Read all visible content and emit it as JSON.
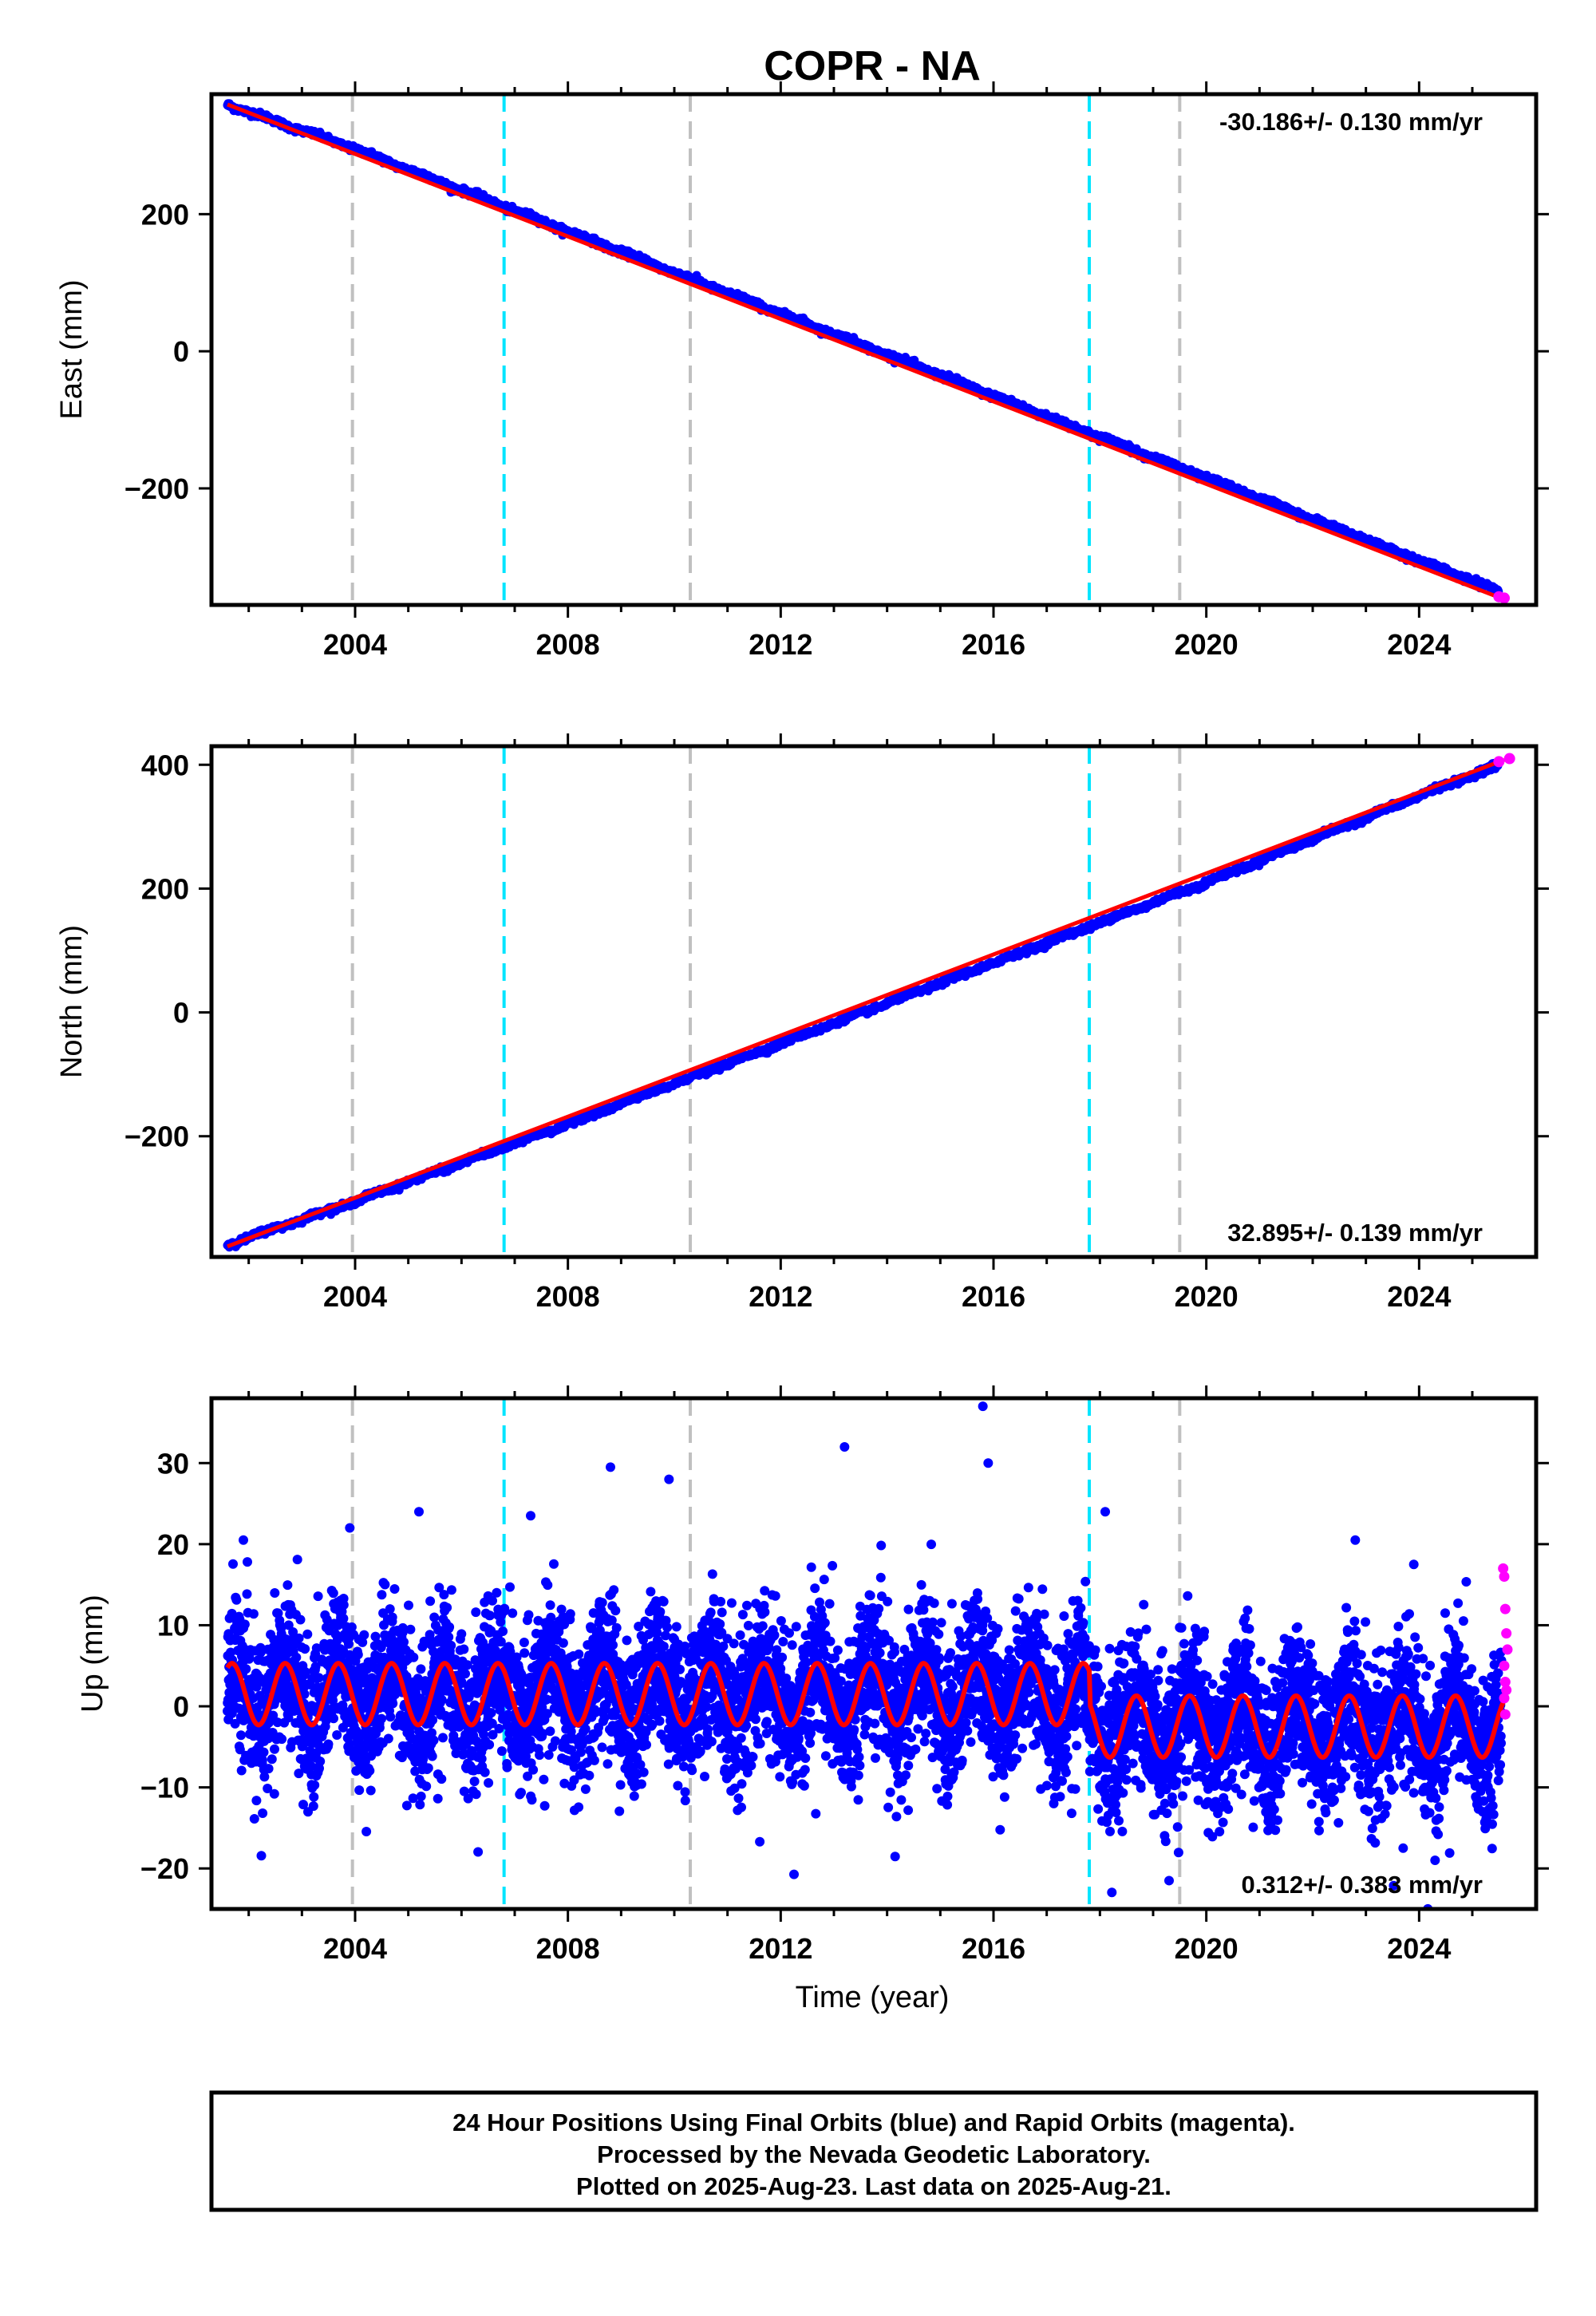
{
  "title": "COPR - NA",
  "colors": {
    "final_orbits": "#0000ff",
    "rapid_orbits": "#ff00ff",
    "model": "#ff0000",
    "equipment_change": "#c0c0c0",
    "earthquake": "#00e5ff"
  },
  "x_axis": {
    "label": "Time (year)",
    "range": [
      2001.3,
      2026.2
    ],
    "ticks": [
      2004,
      2008,
      2012,
      2016,
      2020,
      2024
    ],
    "tick_labels": [
      "2004",
      "2008",
      "2012",
      "2016",
      "2020",
      "2024"
    ]
  },
  "vertical_markers": [
    {
      "kind": "gray",
      "year": 2003.95
    },
    {
      "kind": "cyan",
      "year": 2006.8
    },
    {
      "kind": "gray",
      "year": 2010.3
    },
    {
      "kind": "cyan",
      "year": 2017.8
    },
    {
      "kind": "gray",
      "year": 2019.5
    }
  ],
  "chart_data": [
    {
      "type": "scatter",
      "component": "East",
      "ylabel": "East (mm)",
      "ylim": [
        -370,
        375
      ],
      "yticks": [
        -200,
        0,
        200
      ],
      "ytick_labels": [
        "−200",
        "0",
        "200"
      ],
      "rate_text": "-30.186+/- 0.130 mm/yr",
      "rate_placement": "top-right",
      "series": [
        {
          "name": "Final Orbits (blue)",
          "x": [
            2001.6,
            2004.0,
            2008.0,
            2012.0,
            2016.0,
            2020.0,
            2024.0,
            2025.5
          ],
          "y": [
            360,
            295,
            175,
            55,
            -65,
            -185,
            -305,
            -350
          ]
        },
        {
          "name": "Rapid Orbits (magenta)",
          "x": [
            2025.5,
            2025.6
          ],
          "y": [
            -358,
            -360
          ]
        }
      ],
      "model": {
        "x": [
          2001.6,
          2025.6
        ],
        "y": [
          360,
          -362
        ]
      }
    },
    {
      "type": "scatter",
      "component": "North",
      "ylabel": "North (mm)",
      "ylim": [
        -395,
        430
      ],
      "yticks": [
        -200,
        0,
        200,
        400
      ],
      "ytick_labels": [
        "−200",
        "0",
        "200",
        "400"
      ],
      "rate_text": "32.895+/- 0.139 mm/yr",
      "rate_placement": "bottom-right",
      "series": [
        {
          "name": "Final Orbits (blue)",
          "x": [
            2001.6,
            2004.0,
            2008.0,
            2012.0,
            2016.0,
            2020.0,
            2024.0,
            2025.5
          ],
          "y": [
            -375,
            -305,
            -180,
            -50,
            80,
            210,
            350,
            400
          ]
        },
        {
          "name": "Rapid Orbits (magenta)",
          "x": [
            2025.5,
            2025.7
          ],
          "y": [
            405,
            410
          ]
        }
      ],
      "model": {
        "x": [
          2001.6,
          2025.6
        ],
        "y": [
          -378,
          408
        ]
      }
    },
    {
      "type": "scatter",
      "component": "Up",
      "ylabel": "Up (mm)",
      "ylim": [
        -25,
        38
      ],
      "yticks": [
        -20,
        -10,
        0,
        10,
        20,
        30
      ],
      "ytick_labels": [
        "−20",
        "−10",
        "0",
        "10",
        "20",
        "30"
      ],
      "rate_text": "0.312+/- 0.383 mm/yr",
      "rate_placement": "bottom-right",
      "seasonal": {
        "amplitude_mm": 3.8,
        "offset_before_2017_8_mm": 1.5,
        "offset_after_2017_8_mm": -2.5,
        "scatter_sd_mm": 4.5
      },
      "outliers": {
        "x": [
          2001.9,
          2003.9,
          2005.2,
          2007.3,
          2008.8,
          2009.9,
          2013.2,
          2015.8,
          2015.9,
          2018.1,
          2022.8,
          2023.9,
          2019.3,
          2024.3,
          2023.7
        ],
        "y": [
          20.5,
          22,
          24,
          23.5,
          29.5,
          28,
          32,
          37,
          30,
          24,
          20.5,
          17.5,
          -21.5,
          -19,
          -17.5
        ]
      },
      "rapid": {
        "x": [
          2025.58,
          2025.6,
          2025.62,
          2025.64,
          2025.66,
          2025.6,
          2025.62,
          2025.64,
          2025.6,
          2025.62
        ],
        "y": [
          17,
          16,
          12,
          9,
          7,
          5,
          3,
          2,
          1,
          -1
        ]
      }
    }
  ],
  "footer": {
    "line1": "24 Hour Positions Using Final Orbits (blue) and Rapid Orbits (magenta).",
    "line2": "Processed by the Nevada Geodetic Laboratory.",
    "line3": "Plotted on 2025-Aug-23. Last data on 2025-Aug-21."
  }
}
